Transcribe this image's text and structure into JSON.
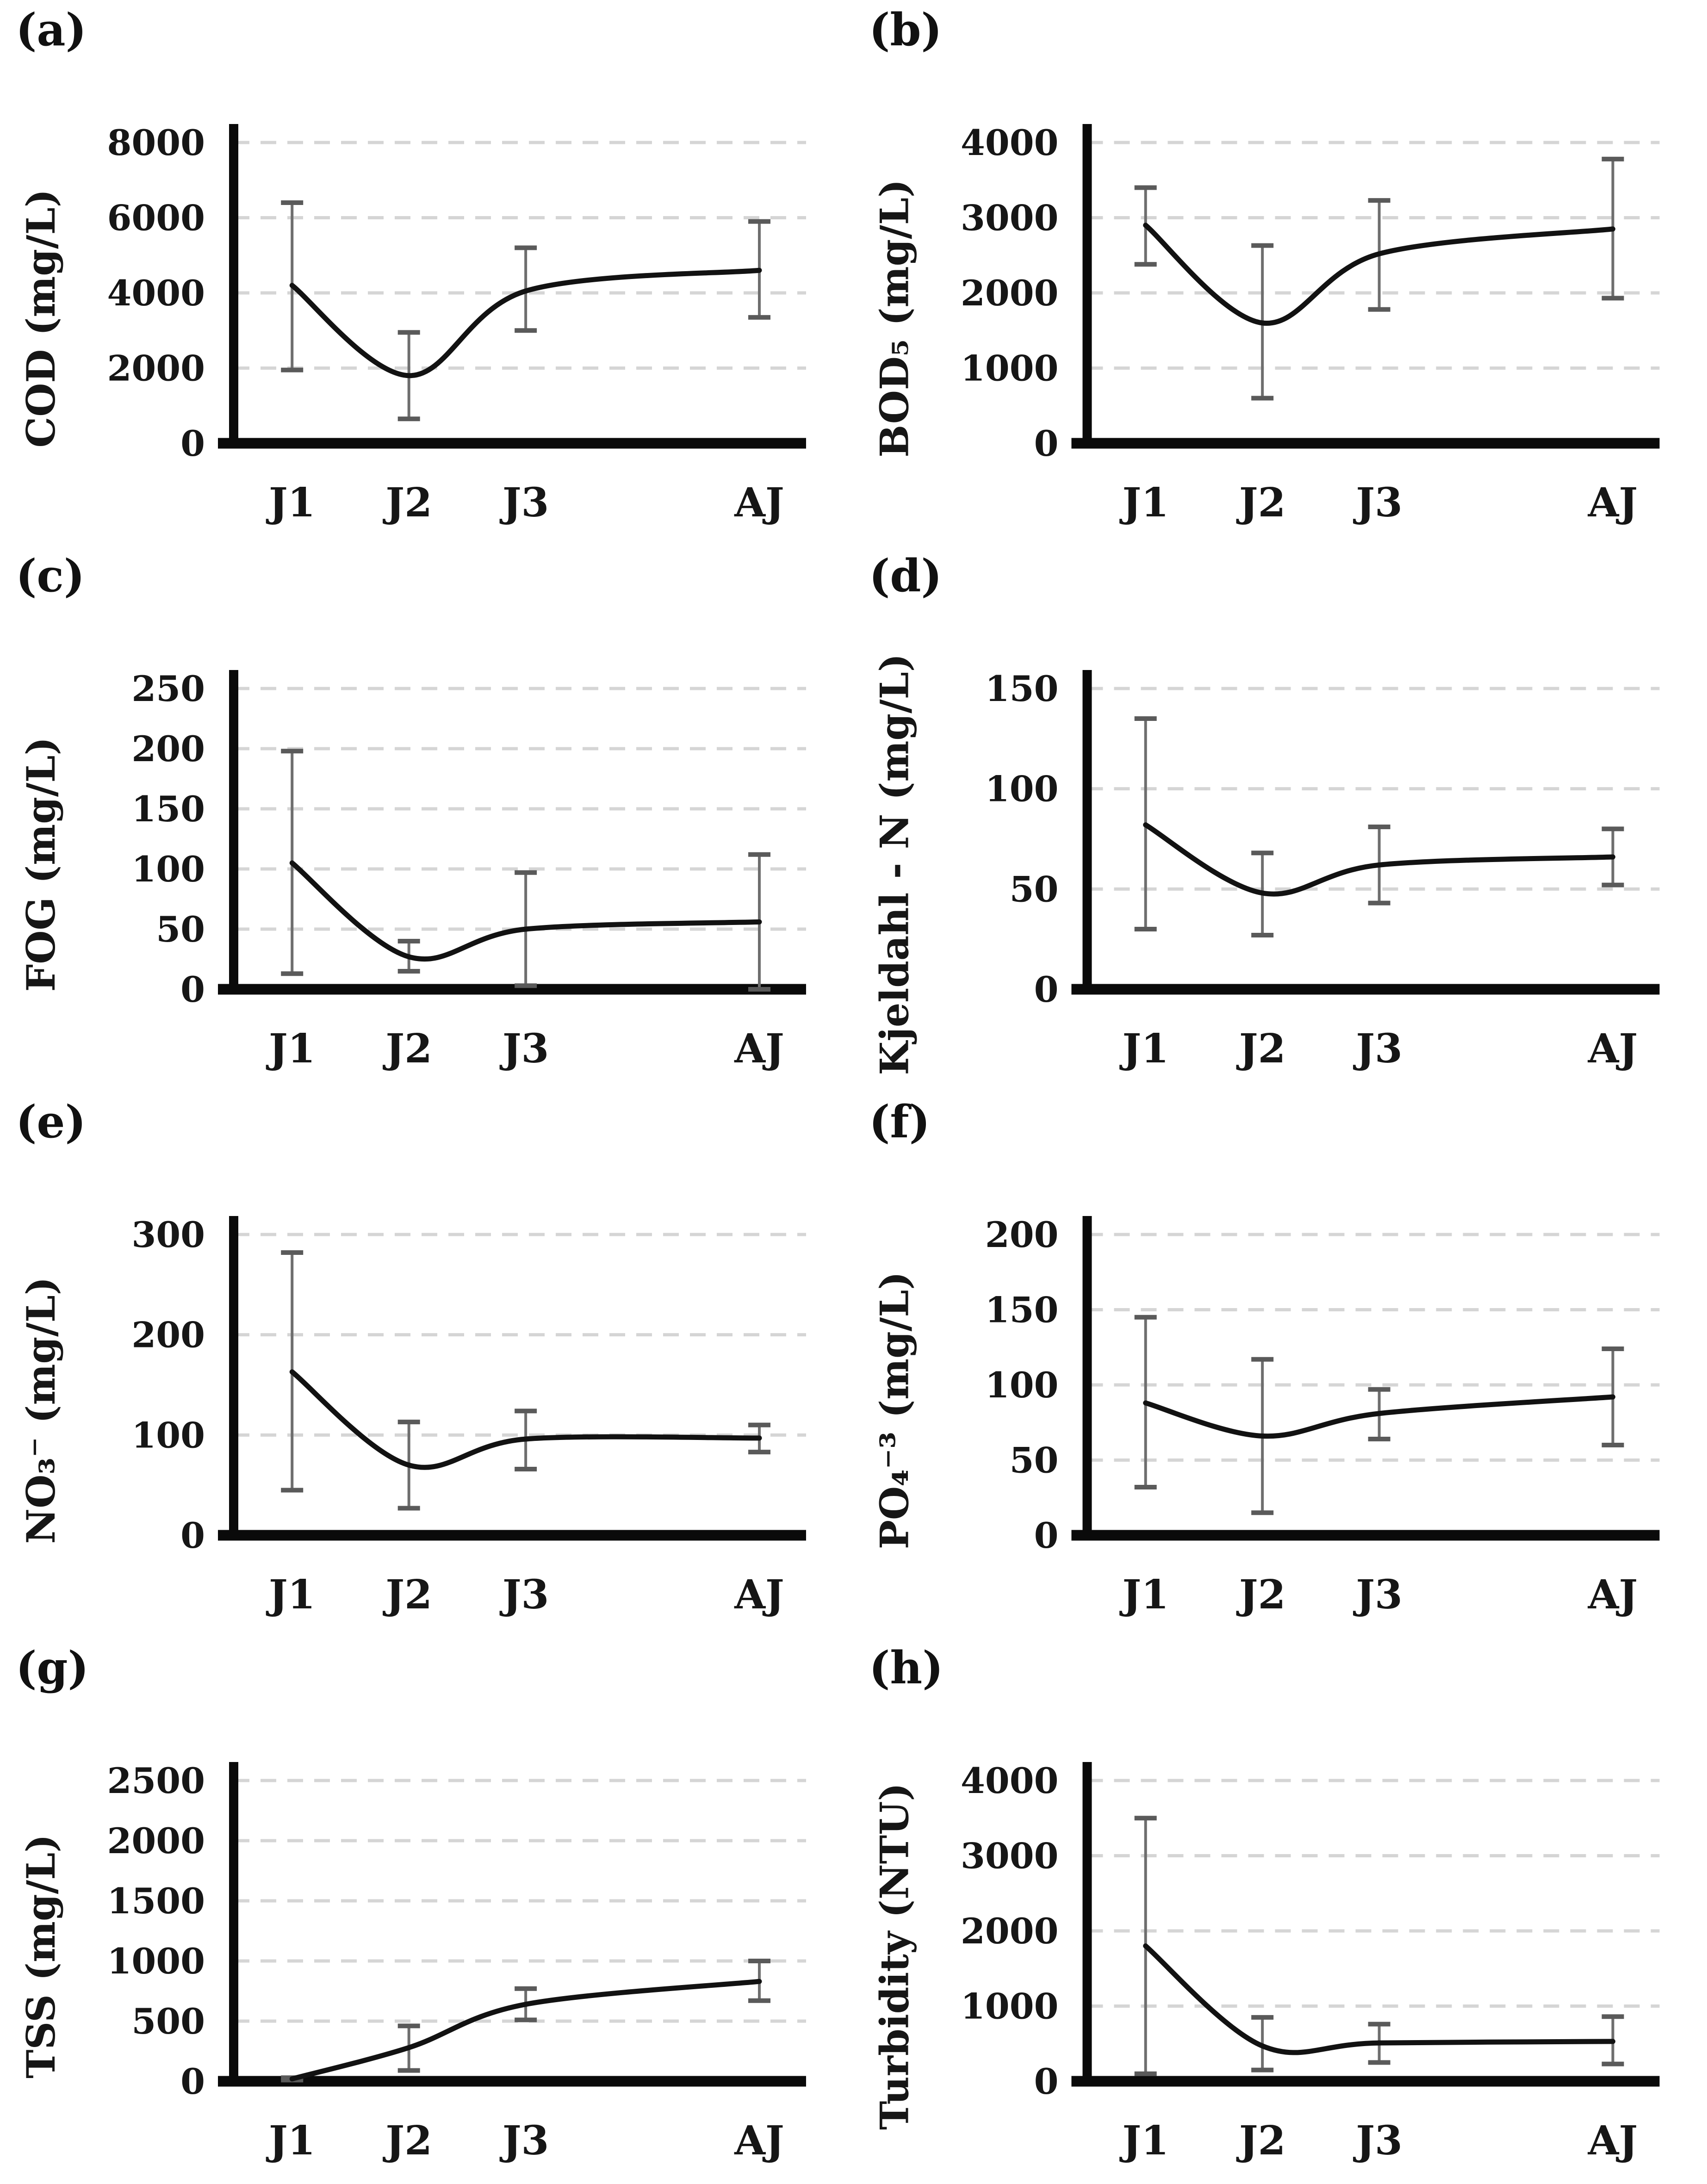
{
  "figure": {
    "background": "#ffffff",
    "description_visible_text_only": "Eight smoothed line charts (a)-(h) with error bars across sampling points J1, J2, J3, AJ"
  },
  "colors": {
    "axis": "#0a0a0a",
    "line": "#121212",
    "error_stem": "#6e6e6e",
    "error_cap": "#5a5a5a",
    "gridline": "#d5d5d5",
    "text": "#161616"
  },
  "x_axis": {
    "categories": [
      "J1",
      "J2",
      "J3",
      "AJ"
    ],
    "positions": [
      1,
      2,
      3,
      5
    ],
    "range": [
      0.5,
      5.4
    ]
  },
  "chart_data": [
    {
      "type": "line",
      "panel_label": "(a)",
      "ylabel": "COD (mg/L)",
      "categories": [
        "J1",
        "J2",
        "J3",
        "AJ"
      ],
      "x_positions": [
        1,
        2,
        3,
        5
      ],
      "values": [
        4200,
        1800,
        4050,
        4600
      ],
      "error_low": [
        1950,
        650,
        3000,
        3350
      ],
      "error_high": [
        6400,
        2950,
        5200,
        5900
      ],
      "ylim": [
        0,
        8000
      ],
      "yticks": [
        0,
        2000,
        4000,
        6000,
        8000
      ],
      "grid": true,
      "line_shape": "smooth",
      "legend": "none"
    },
    {
      "type": "line",
      "panel_label": "(b)",
      "ylabel": "BOD₅ (mg/L)",
      "categories": [
        "J1",
        "J2",
        "J3",
        "AJ"
      ],
      "x_positions": [
        1,
        2,
        3,
        5
      ],
      "values": [
        2900,
        1600,
        2520,
        2850
      ],
      "error_low": [
        2380,
        600,
        1780,
        1930
      ],
      "error_high": [
        3400,
        2630,
        3230,
        3780
      ],
      "ylim": [
        0,
        4000
      ],
      "yticks": [
        0,
        1000,
        2000,
        3000,
        4000
      ],
      "grid": true,
      "line_shape": "smooth",
      "legend": "none"
    },
    {
      "type": "line",
      "panel_label": "(c)",
      "ylabel": "FOG (mg/L)",
      "categories": [
        "J1",
        "J2",
        "J3",
        "AJ"
      ],
      "x_positions": [
        1,
        2,
        3,
        5
      ],
      "values": [
        105,
        27,
        50,
        56
      ],
      "error_low": [
        13,
        15,
        3,
        0
      ],
      "error_high": [
        198,
        40,
        97,
        112
      ],
      "ylim": [
        0,
        250
      ],
      "yticks": [
        0,
        50,
        100,
        150,
        200,
        250
      ],
      "grid": true,
      "line_shape": "smooth",
      "legend": "none"
    },
    {
      "type": "line",
      "panel_label": "(d)",
      "ylabel": "Kjeldahl - N (mg/L)",
      "categories": [
        "J1",
        "J2",
        "J3",
        "AJ"
      ],
      "x_positions": [
        1,
        2,
        3,
        5
      ],
      "values": [
        82,
        48,
        62,
        66
      ],
      "error_low": [
        30,
        27,
        43,
        52
      ],
      "error_high": [
        135,
        68,
        81,
        80
      ],
      "ylim": [
        0,
        150
      ],
      "yticks": [
        0,
        50,
        100,
        150
      ],
      "grid": true,
      "line_shape": "smooth",
      "legend": "none"
    },
    {
      "type": "line",
      "panel_label": "(e)",
      "ylabel": "NO₃⁻ (mg/L)",
      "categories": [
        "J1",
        "J2",
        "J3",
        "AJ"
      ],
      "x_positions": [
        1,
        2,
        3,
        5
      ],
      "values": [
        163,
        70,
        96,
        97
      ],
      "error_low": [
        45,
        27,
        66,
        83
      ],
      "error_high": [
        282,
        113,
        124,
        110
      ],
      "ylim": [
        0,
        300
      ],
      "yticks": [
        0,
        100,
        200,
        300
      ],
      "grid": true,
      "line_shape": "smooth",
      "legend": "none"
    },
    {
      "type": "line",
      "panel_label": "(f)",
      "ylabel": "PO₄⁻³ (mg/L)",
      "categories": [
        "J1",
        "J2",
        "J3",
        "AJ"
      ],
      "x_positions": [
        1,
        2,
        3,
        5
      ],
      "values": [
        88,
        66,
        81,
        92
      ],
      "error_low": [
        32,
        15,
        64,
        60
      ],
      "error_high": [
        145,
        117,
        97,
        124
      ],
      "ylim": [
        0,
        200
      ],
      "yticks": [
        0,
        50,
        100,
        150,
        200
      ],
      "grid": true,
      "line_shape": "smooth",
      "legend": "none"
    },
    {
      "type": "line",
      "panel_label": "(g)",
      "ylabel": "TSS (mg/L)",
      "categories": [
        "J1",
        "J2",
        "J3",
        "AJ"
      ],
      "x_positions": [
        1,
        2,
        3,
        5
      ],
      "values": [
        20,
        280,
        640,
        830
      ],
      "error_low": [
        10,
        90,
        510,
        670
      ],
      "error_high": [
        30,
        460,
        770,
        1000
      ],
      "ylim": [
        0,
        2500
      ],
      "yticks": [
        0,
        500,
        1000,
        1500,
        2000,
        2500
      ],
      "grid": true,
      "line_shape": "smooth",
      "legend": "none"
    },
    {
      "type": "line",
      "panel_label": "(h)",
      "ylabel": "Turbidity (NTU)",
      "categories": [
        "J1",
        "J2",
        "J3",
        "AJ"
      ],
      "x_positions": [
        1,
        2,
        3,
        5
      ],
      "values": [
        1800,
        470,
        510,
        530
      ],
      "error_low": [
        100,
        150,
        250,
        230
      ],
      "error_high": [
        3500,
        850,
        760,
        860
      ],
      "ylim": [
        0,
        4000
      ],
      "yticks": [
        0,
        1000,
        2000,
        3000,
        4000
      ],
      "grid": true,
      "line_shape": "smooth",
      "legend": "none"
    }
  ]
}
